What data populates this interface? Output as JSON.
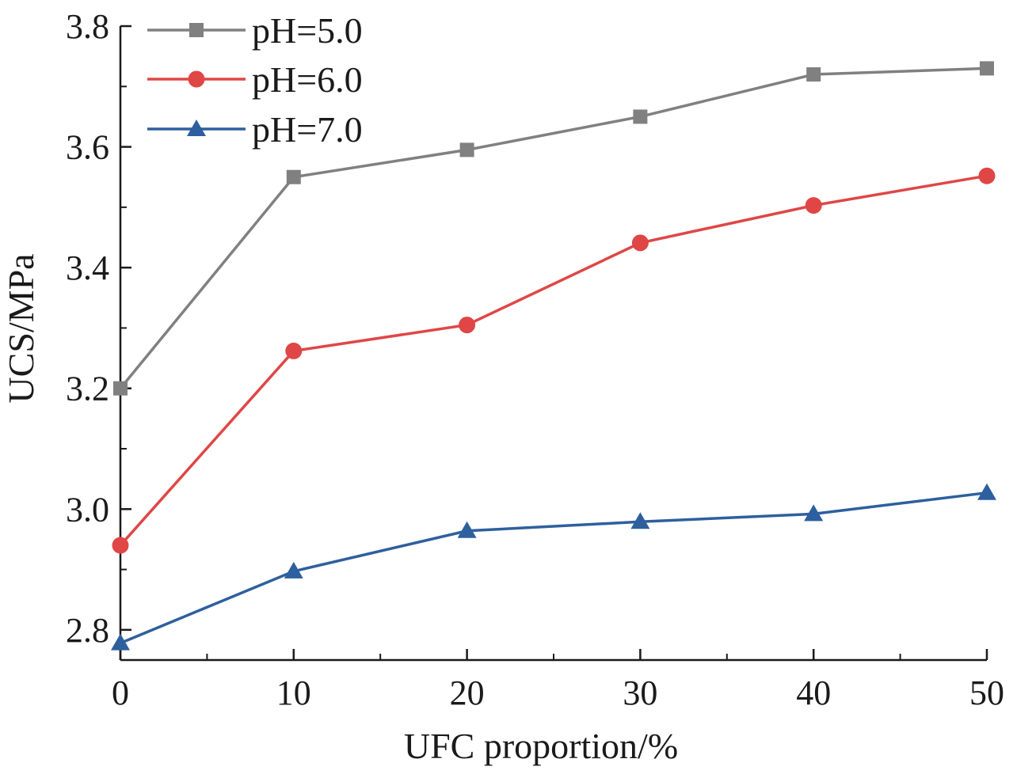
{
  "chart_data": {
    "type": "line",
    "xlabel": "UFC proportion/%",
    "ylabel": "UCS/MPa",
    "x": [
      0,
      10,
      20,
      30,
      40,
      50
    ],
    "xlim": [
      0,
      50
    ],
    "ylim": [
      2.75,
      3.8
    ],
    "x_ticks": [
      "0",
      "10",
      "20",
      "30",
      "40",
      "50"
    ],
    "y_ticks": [
      "2.8",
      "3.0",
      "3.2",
      "3.4",
      "3.6",
      "3.8"
    ],
    "legend_position": "top-left",
    "grid": false,
    "series": [
      {
        "name": "pH=5.0",
        "marker": "square",
        "color": "#808080",
        "values": [
          3.2,
          3.55,
          3.595,
          3.65,
          3.72,
          3.73
        ]
      },
      {
        "name": "pH=6.0",
        "marker": "circle",
        "color": "#e04646",
        "values": [
          2.94,
          3.262,
          3.305,
          3.441,
          3.503,
          3.552
        ]
      },
      {
        "name": "pH=7.0",
        "marker": "triangle",
        "color": "#2e5f9e",
        "values": [
          2.778,
          2.897,
          2.964,
          2.979,
          2.992,
          3.027
        ]
      }
    ]
  }
}
